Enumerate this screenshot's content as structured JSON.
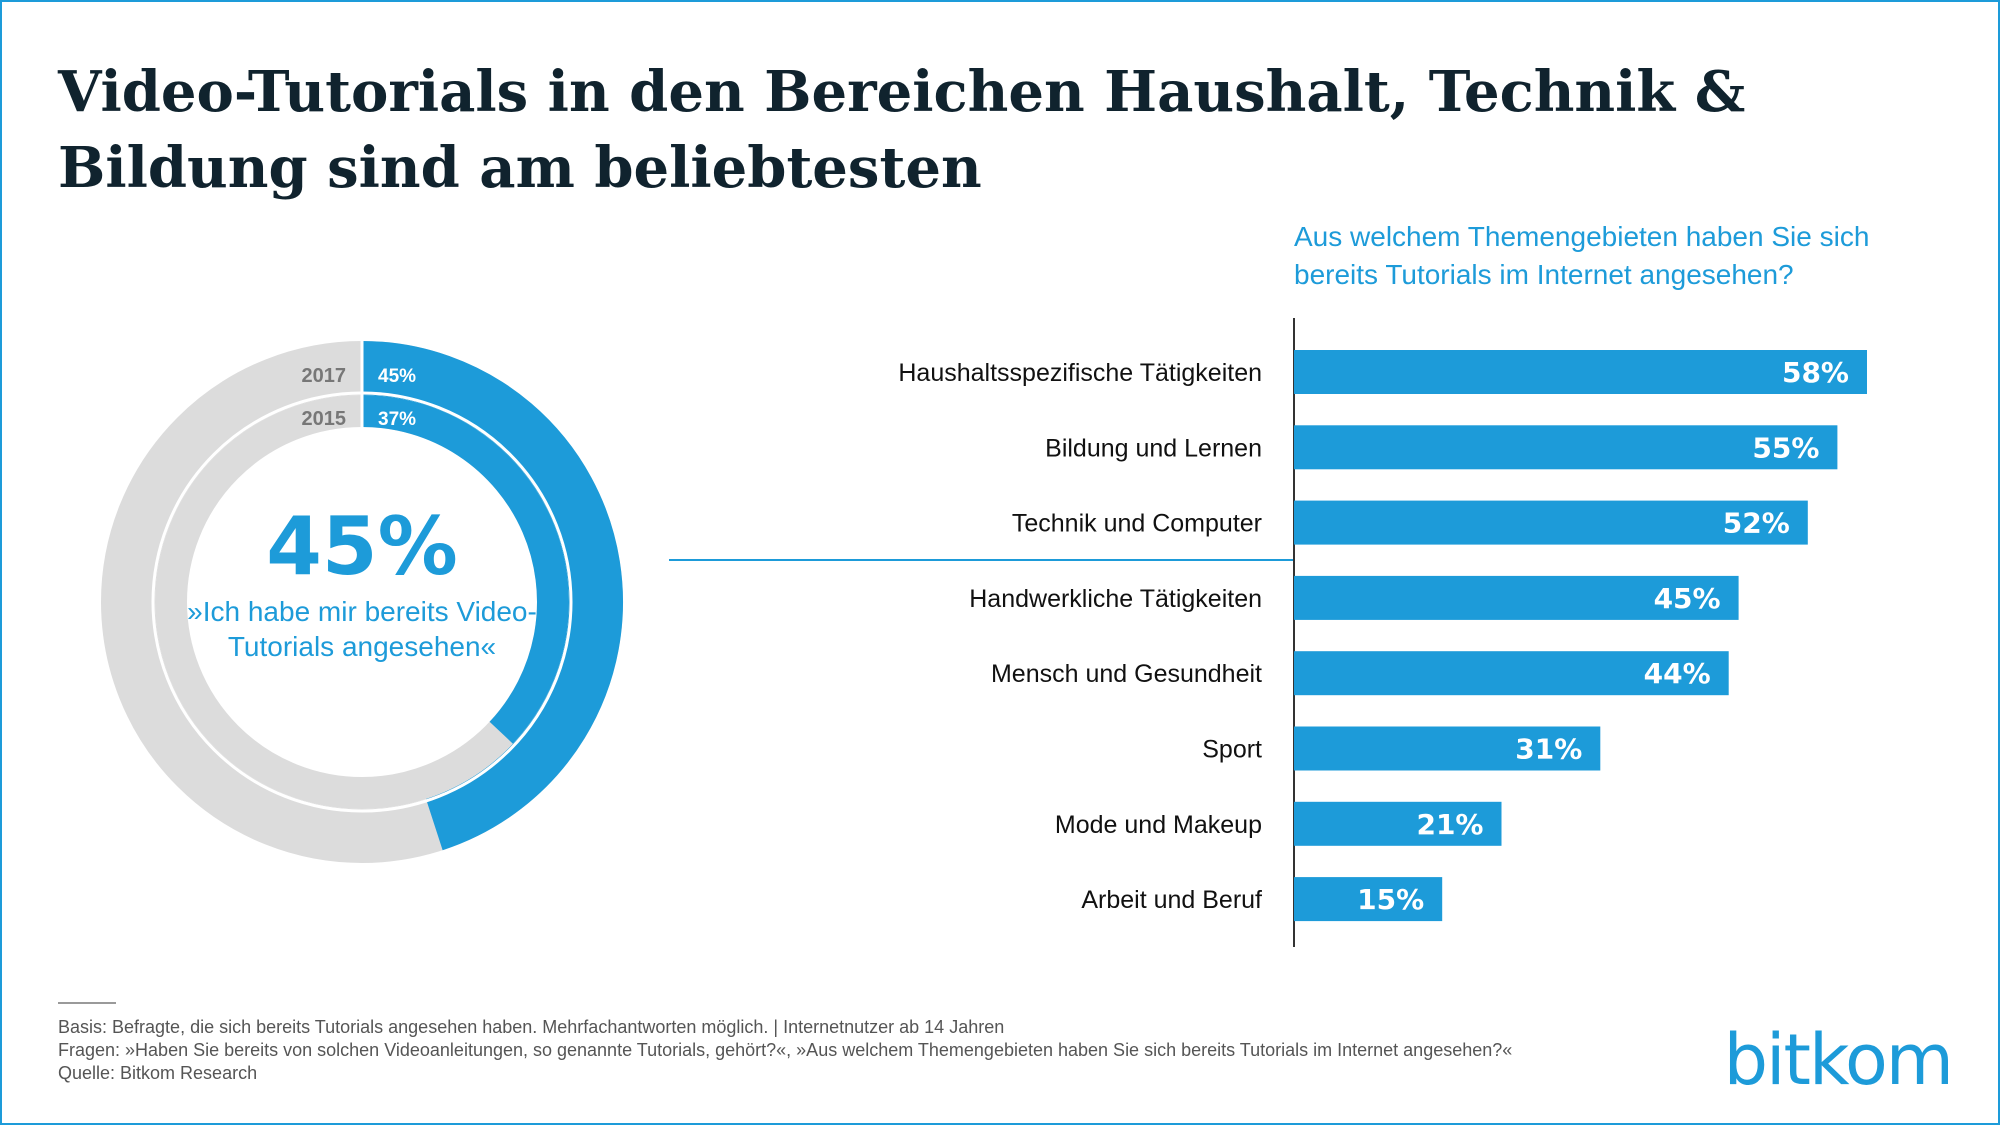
{
  "title": "Video-Tutorials in den Bereichen Haushalt, Technik & Bildung sind am beliebtesten",
  "question": "Aus welchem Themengebieten haben Sie sich bereits Tutorials im Internet angesehen?",
  "chart_data": [
    {
      "type": "pie",
      "variant": "nested-donut",
      "center_value": "45%",
      "center_text": "»Ich habe mir bereits Video-Tutorials angesehen«",
      "rings": [
        {
          "year": "2017",
          "value": 45,
          "label": "45%"
        },
        {
          "year": "2015",
          "value": 37,
          "label": "37%"
        }
      ],
      "colors": {
        "value": "#1d9bd9",
        "rest": "#dcdcdc"
      }
    },
    {
      "type": "bar",
      "orientation": "horizontal",
      "categories": [
        "Haushaltsspezifische Tätigkeiten",
        "Bildung und Lernen",
        "Technik und Computer",
        "Handwerkliche Tätigkeiten",
        "Mensch und Gesundheit",
        "Sport",
        "Mode und Makeup",
        "Arbeit und Beruf"
      ],
      "values": [
        58,
        55,
        52,
        45,
        44,
        31,
        21,
        15
      ],
      "labels": [
        "58%",
        "55%",
        "52%",
        "45%",
        "44%",
        "31%",
        "21%",
        "15%"
      ],
      "xlim": [
        0,
        100
      ],
      "color": "#1d9bd9"
    }
  ],
  "footer": {
    "basis": "Basis: Befragte, die sich bereits Tutorials angesehen haben. Mehrfachantworten möglich.  |  Internetnutzer ab 14 Jahren",
    "fragen": "Fragen: »Haben Sie bereits von solchen Videoanleitungen, so genannte Tutorials, gehört?«, »Aus welchem Themengebieten haben Sie sich bereits Tutorials im Internet angesehen?«",
    "quelle": "Quelle: Bitkom Research"
  },
  "logo": "bitkom"
}
